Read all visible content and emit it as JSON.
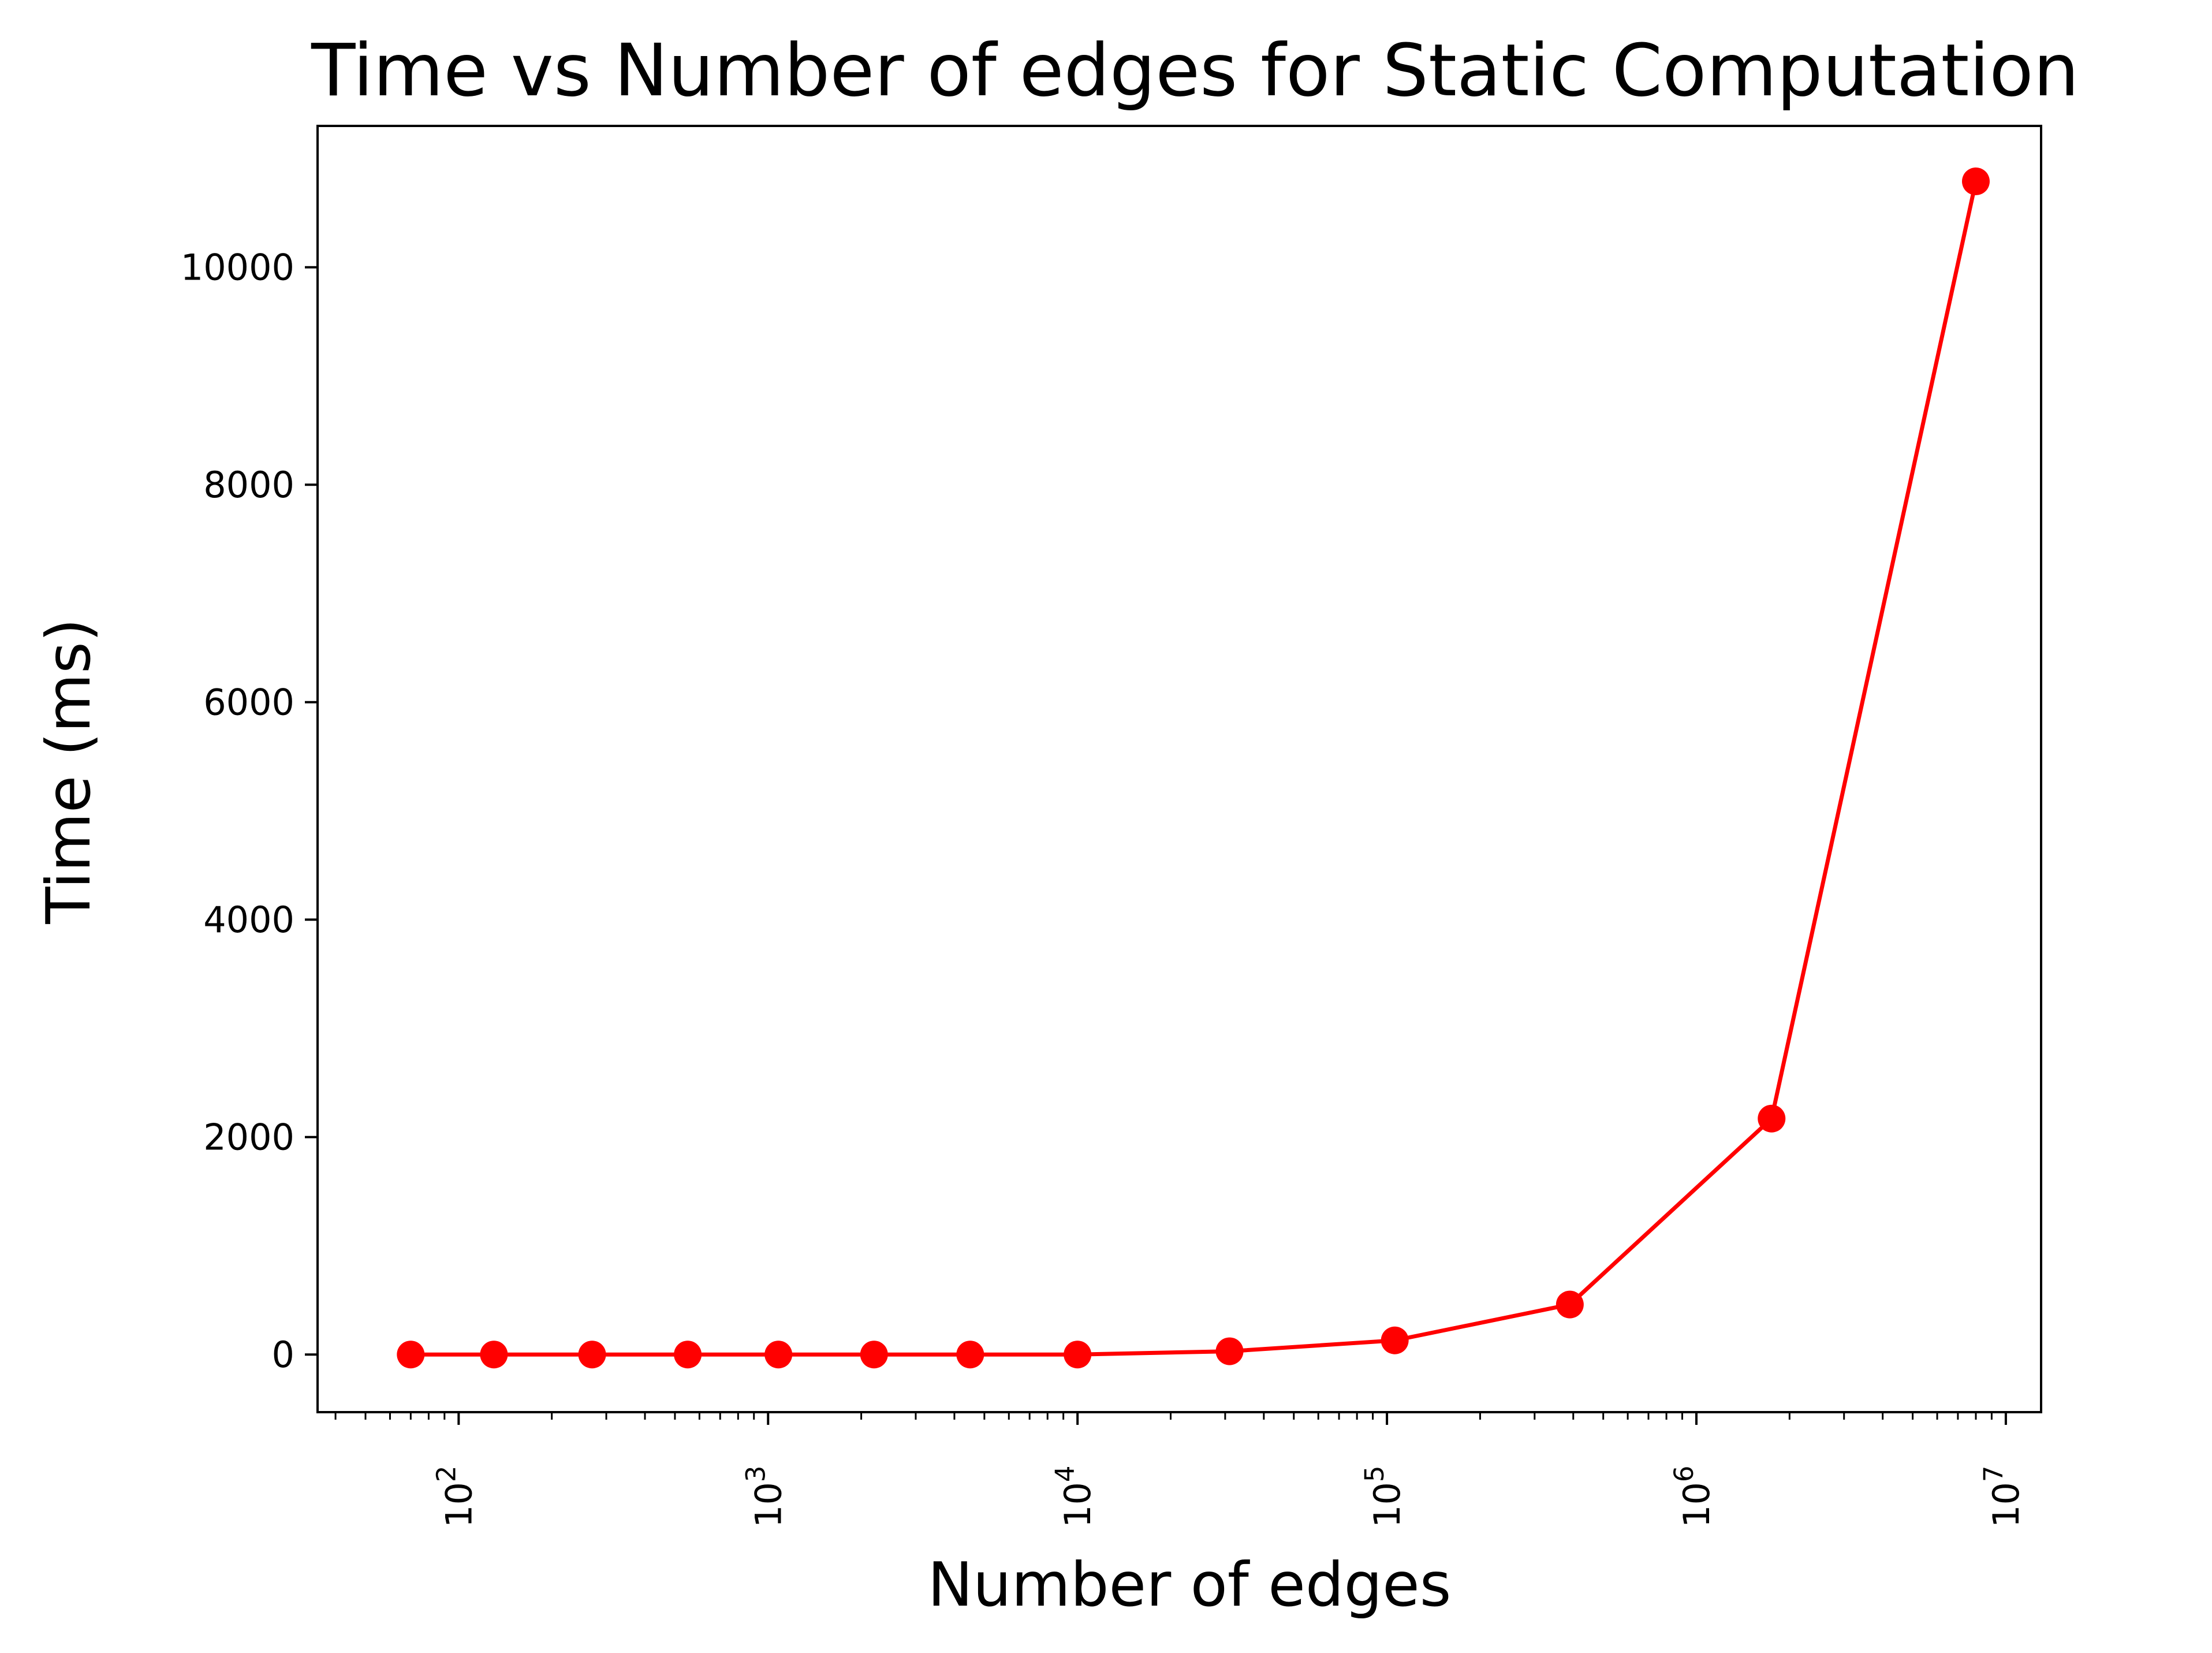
{
  "chart_data": {
    "type": "line",
    "title": "Time vs Number of edges for Static Computation",
    "xlabel": "Number of edges",
    "ylabel": "Time (ms)",
    "xscale": "log",
    "xlim": [
      35,
      13000000
    ],
    "ylim": [
      -530,
      11300
    ],
    "x_ticks": [
      {
        "base": "10",
        "exp": "2",
        "value": 100
      },
      {
        "base": "10",
        "exp": "3",
        "value": 1000
      },
      {
        "base": "10",
        "exp": "4",
        "value": 10000
      },
      {
        "base": "10",
        "exp": "5",
        "value": 100000
      },
      {
        "base": "10",
        "exp": "6",
        "value": 1000000
      },
      {
        "base": "10",
        "exp": "7",
        "value": 10000000
      }
    ],
    "y_ticks": [
      "0",
      "2000",
      "4000",
      "6000",
      "8000",
      "10000"
    ],
    "grid": false,
    "legend": "none",
    "series": [
      {
        "color": "#ff0000",
        "marker": "circle",
        "points": [
          {
            "x": 70,
            "y": 0
          },
          {
            "x": 130,
            "y": 0
          },
          {
            "x": 270,
            "y": 0
          },
          {
            "x": 550,
            "y": 0
          },
          {
            "x": 1080,
            "y": 0
          },
          {
            "x": 2200,
            "y": 0
          },
          {
            "x": 4500,
            "y": 0
          },
          {
            "x": 10000,
            "y": 0
          },
          {
            "x": 31000,
            "y": 30
          },
          {
            "x": 106000,
            "y": 130
          },
          {
            "x": 390000,
            "y": 460
          },
          {
            "x": 1750000,
            "y": 2170
          },
          {
            "x": 8000000,
            "y": 10790
          }
        ]
      }
    ]
  }
}
